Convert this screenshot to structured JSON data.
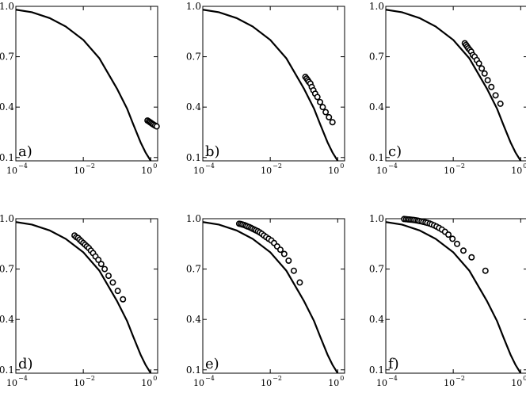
{
  "chart_data": [
    {
      "type": "line+scatter",
      "panel_label": "a)",
      "xscale": "log",
      "xlim": [
        0.0001,
        1.6
      ],
      "ylim": [
        0.08,
        1.0
      ],
      "xticks": [
        {
          "value": 0.0001,
          "base": "10",
          "exp": "−4"
        },
        {
          "value": 0.01,
          "base": "10",
          "exp": "−2"
        },
        {
          "value": 1,
          "base": "10",
          "exp": "0"
        }
      ],
      "yticks": [
        {
          "value": 0.1,
          "label": "0.1"
        },
        {
          "value": 0.4,
          "label": "0.4"
        },
        {
          "value": 0.7,
          "label": "0.7"
        },
        {
          "value": 1.0,
          "label": "1.0"
        }
      ],
      "curve": {
        "x": [
          0.0001,
          0.0003,
          0.001,
          0.003,
          0.01,
          0.03,
          0.1,
          0.2,
          0.3,
          0.5,
          0.7,
          1.0
        ],
        "y": [
          0.98,
          0.965,
          0.93,
          0.88,
          0.8,
          0.69,
          0.51,
          0.39,
          0.3,
          0.19,
          0.13,
          0.08
        ]
      },
      "markers": {
        "x": [
          0.8,
          0.88,
          0.95,
          1.03,
          1.12,
          1.22,
          1.35,
          1.5
        ],
        "y": [
          0.32,
          0.315,
          0.31,
          0.305,
          0.3,
          0.295,
          0.29,
          0.285
        ]
      }
    },
    {
      "type": "line+scatter",
      "panel_label": "b)",
      "xscale": "log",
      "xlim": [
        0.0001,
        1.6
      ],
      "ylim": [
        0.08,
        1.0
      ],
      "xticks": [
        {
          "value": 0.0001,
          "base": "10",
          "exp": "−4"
        },
        {
          "value": 0.01,
          "base": "10",
          "exp": "−2"
        },
        {
          "value": 1,
          "base": "10",
          "exp": "0"
        }
      ],
      "yticks": [
        {
          "value": 0.1,
          "label": "0.1"
        },
        {
          "value": 0.4,
          "label": "0.4"
        },
        {
          "value": 0.7,
          "label": "0.7"
        },
        {
          "value": 1.0,
          "label": "1.0"
        }
      ],
      "curve": {
        "x": [
          0.0001,
          0.0003,
          0.001,
          0.003,
          0.01,
          0.03,
          0.1,
          0.2,
          0.3,
          0.5,
          0.7,
          1.0
        ],
        "y": [
          0.98,
          0.965,
          0.93,
          0.88,
          0.8,
          0.69,
          0.51,
          0.39,
          0.3,
          0.19,
          0.13,
          0.08
        ]
      },
      "markers": {
        "x": [
          0.11,
          0.12,
          0.13,
          0.14,
          0.155,
          0.17,
          0.19,
          0.215,
          0.25,
          0.3,
          0.36,
          0.44,
          0.55,
          0.7
        ],
        "y": [
          0.58,
          0.57,
          0.56,
          0.55,
          0.54,
          0.52,
          0.5,
          0.48,
          0.46,
          0.43,
          0.4,
          0.37,
          0.34,
          0.31
        ]
      }
    },
    {
      "type": "line+scatter",
      "panel_label": "c)",
      "xscale": "log",
      "xlim": [
        0.0001,
        1.6
      ],
      "ylim": [
        0.08,
        1.0
      ],
      "xticks": [
        {
          "value": 0.0001,
          "base": "10",
          "exp": "−4"
        },
        {
          "value": 0.01,
          "base": "10",
          "exp": "−2"
        },
        {
          "value": 1,
          "base": "10",
          "exp": "0"
        }
      ],
      "yticks": [
        {
          "value": 0.1,
          "label": "0.1"
        },
        {
          "value": 0.4,
          "label": "0.4"
        },
        {
          "value": 0.7,
          "label": "0.7"
        },
        {
          "value": 1.0,
          "label": "1.0"
        }
      ],
      "curve": {
        "x": [
          0.0001,
          0.0003,
          0.001,
          0.003,
          0.01,
          0.03,
          0.1,
          0.2,
          0.3,
          0.5,
          0.7,
          1.0
        ],
        "y": [
          0.98,
          0.965,
          0.93,
          0.88,
          0.8,
          0.69,
          0.51,
          0.39,
          0.3,
          0.19,
          0.13,
          0.08
        ]
      },
      "markers": {
        "x": [
          0.022,
          0.024,
          0.026,
          0.028,
          0.031,
          0.034,
          0.038,
          0.043,
          0.05,
          0.058,
          0.07,
          0.085,
          0.105,
          0.135,
          0.18,
          0.25
        ],
        "y": [
          0.78,
          0.77,
          0.76,
          0.75,
          0.74,
          0.73,
          0.71,
          0.7,
          0.68,
          0.66,
          0.63,
          0.6,
          0.56,
          0.52,
          0.47,
          0.42
        ]
      }
    },
    {
      "type": "line+scatter",
      "panel_label": "d)",
      "xscale": "log",
      "xlim": [
        0.0001,
        1.6
      ],
      "ylim": [
        0.08,
        1.0
      ],
      "xticks": [
        {
          "value": 0.0001,
          "base": "10",
          "exp": "−4"
        },
        {
          "value": 0.01,
          "base": "10",
          "exp": "−2"
        },
        {
          "value": 1,
          "base": "10",
          "exp": "0"
        }
      ],
      "yticks": [
        {
          "value": 0.1,
          "label": "0.1"
        },
        {
          "value": 0.4,
          "label": "0.4"
        },
        {
          "value": 0.7,
          "label": "0.7"
        },
        {
          "value": 1.0,
          "label": "1.0"
        }
      ],
      "curve": {
        "x": [
          0.0001,
          0.0003,
          0.001,
          0.003,
          0.01,
          0.03,
          0.1,
          0.2,
          0.3,
          0.5,
          0.7,
          1.0
        ],
        "y": [
          0.98,
          0.965,
          0.93,
          0.88,
          0.8,
          0.69,
          0.51,
          0.39,
          0.3,
          0.19,
          0.13,
          0.08
        ]
      },
      "markers": {
        "x": [
          0.0055,
          0.0062,
          0.007,
          0.0078,
          0.0088,
          0.01,
          0.0113,
          0.0128,
          0.0146,
          0.0168,
          0.0195,
          0.023,
          0.028,
          0.034,
          0.043,
          0.056,
          0.075,
          0.105,
          0.15
        ],
        "y": [
          0.9,
          0.89,
          0.885,
          0.875,
          0.865,
          0.855,
          0.845,
          0.835,
          0.825,
          0.81,
          0.795,
          0.775,
          0.755,
          0.73,
          0.7,
          0.66,
          0.62,
          0.57,
          0.52
        ]
      }
    },
    {
      "type": "line+scatter",
      "panel_label": "e)",
      "xscale": "log",
      "xlim": [
        0.0001,
        1.6
      ],
      "ylim": [
        0.08,
        1.0
      ],
      "xticks": [
        {
          "value": 0.0001,
          "base": "10",
          "exp": "−4"
        },
        {
          "value": 0.01,
          "base": "10",
          "exp": "−2"
        },
        {
          "value": 1,
          "base": "10",
          "exp": "0"
        }
      ],
      "yticks": [
        {
          "value": 0.1,
          "label": "0.1"
        },
        {
          "value": 0.4,
          "label": "0.4"
        },
        {
          "value": 0.7,
          "label": "0.7"
        },
        {
          "value": 1.0,
          "label": "1.0"
        }
      ],
      "curve": {
        "x": [
          0.0001,
          0.0003,
          0.001,
          0.003,
          0.01,
          0.03,
          0.1,
          0.2,
          0.3,
          0.5,
          0.7,
          1.0
        ],
        "y": [
          0.98,
          0.965,
          0.93,
          0.88,
          0.8,
          0.69,
          0.51,
          0.39,
          0.3,
          0.19,
          0.13,
          0.08
        ]
      },
      "markers": {
        "x": [
          0.0012,
          0.00135,
          0.0015,
          0.0017,
          0.0019,
          0.0021,
          0.0024,
          0.0027,
          0.003,
          0.0034,
          0.0038,
          0.0043,
          0.0049,
          0.0056,
          0.0065,
          0.0076,
          0.009,
          0.0108,
          0.013,
          0.016,
          0.02,
          0.026,
          0.035,
          0.05,
          0.075
        ],
        "y": [
          0.97,
          0.968,
          0.965,
          0.962,
          0.958,
          0.954,
          0.95,
          0.945,
          0.94,
          0.935,
          0.93,
          0.925,
          0.918,
          0.91,
          0.9,
          0.89,
          0.88,
          0.87,
          0.855,
          0.835,
          0.815,
          0.79,
          0.75,
          0.69,
          0.62
        ]
      }
    },
    {
      "type": "line+scatter",
      "panel_label": "f)",
      "xscale": "log",
      "xlim": [
        0.0001,
        1.6
      ],
      "ylim": [
        0.08,
        1.0
      ],
      "xticks": [
        {
          "value": 0.0001,
          "base": "10",
          "exp": "−4"
        },
        {
          "value": 0.01,
          "base": "10",
          "exp": "−2"
        },
        {
          "value": 1,
          "base": "10",
          "exp": "0"
        }
      ],
      "yticks": [
        {
          "value": 0.1,
          "label": "0.1"
        },
        {
          "value": 0.4,
          "label": "0.4"
        },
        {
          "value": 0.7,
          "label": "0.7"
        },
        {
          "value": 1.0,
          "label": "1.0"
        }
      ],
      "curve": {
        "x": [
          0.0001,
          0.0003,
          0.001,
          0.003,
          0.01,
          0.03,
          0.1,
          0.2,
          0.3,
          0.5,
          0.7,
          1.0
        ],
        "y": [
          0.98,
          0.965,
          0.93,
          0.88,
          0.8,
          0.69,
          0.51,
          0.39,
          0.3,
          0.19,
          0.13,
          0.08
        ]
      },
      "markers": {
        "x": [
          0.00035,
          0.0004,
          0.00045,
          0.0005,
          0.00056,
          0.00063,
          0.0007,
          0.0008,
          0.0009,
          0.001,
          0.00115,
          0.0013,
          0.0015,
          0.0017,
          0.002,
          0.0023,
          0.0027,
          0.0032,
          0.0038,
          0.0046,
          0.0057,
          0.0072,
          0.0095,
          0.013,
          0.02,
          0.035,
          0.09
        ],
        "y": [
          0.998,
          0.997,
          0.996,
          0.995,
          0.994,
          0.993,
          0.992,
          0.99,
          0.988,
          0.986,
          0.984,
          0.981,
          0.978,
          0.975,
          0.971,
          0.966,
          0.96,
          0.953,
          0.945,
          0.935,
          0.922,
          0.905,
          0.88,
          0.85,
          0.81,
          0.77,
          0.69
        ]
      }
    }
  ]
}
